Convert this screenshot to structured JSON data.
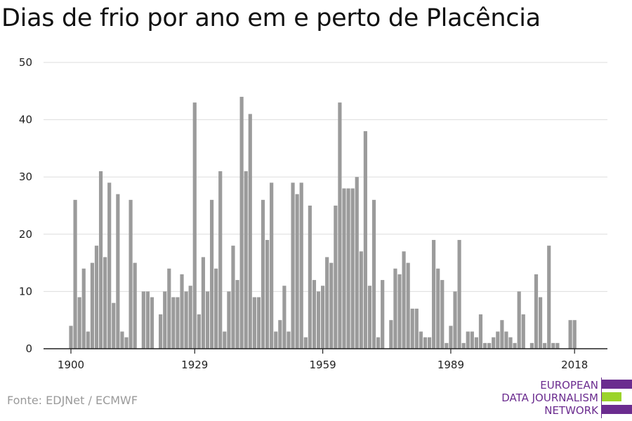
{
  "title": "Dias de frio por ano em e perto de Placência",
  "source": "Fonte: EDJNet / ECMWF",
  "logo": {
    "lines": [
      "EUROPEAN",
      "DATA JOURNALISM",
      "NETWORK"
    ],
    "colors": {
      "purple": "#6b2c8f",
      "green": "#9bd32b"
    }
  },
  "chart_data": {
    "type": "bar",
    "title": "Dias de frio por ano em e perto de Placência",
    "xlabel": "",
    "ylabel": "",
    "ylim": [
      0,
      50
    ],
    "yticks": [
      0,
      10,
      20,
      30,
      40,
      50
    ],
    "xticks": [
      1900,
      1929,
      1959,
      1989,
      2018
    ],
    "grid": true,
    "legend": "none",
    "bar_color": "#9b9b9b",
    "x": [
      1900,
      1901,
      1902,
      1903,
      1904,
      1905,
      1906,
      1907,
      1908,
      1909,
      1910,
      1911,
      1912,
      1913,
      1914,
      1915,
      1916,
      1917,
      1918,
      1919,
      1920,
      1921,
      1922,
      1923,
      1924,
      1925,
      1926,
      1927,
      1928,
      1929,
      1930,
      1931,
      1932,
      1933,
      1934,
      1935,
      1936,
      1937,
      1938,
      1939,
      1940,
      1941,
      1942,
      1943,
      1944,
      1945,
      1946,
      1947,
      1948,
      1949,
      1950,
      1951,
      1952,
      1953,
      1954,
      1955,
      1956,
      1957,
      1958,
      1959,
      1960,
      1961,
      1962,
      1963,
      1964,
      1965,
      1966,
      1967,
      1968,
      1969,
      1970,
      1971,
      1972,
      1973,
      1974,
      1975,
      1976,
      1977,
      1978,
      1979,
      1980,
      1981,
      1982,
      1983,
      1984,
      1985,
      1986,
      1987,
      1988,
      1989,
      1990,
      1991,
      1992,
      1993,
      1994,
      1995,
      1996,
      1997,
      1998,
      1999,
      2000,
      2001,
      2002,
      2003,
      2004,
      2005,
      2006,
      2007,
      2008,
      2009,
      2010,
      2011,
      2012,
      2013,
      2014,
      2015,
      2016,
      2017,
      2018
    ],
    "values": [
      4,
      26,
      9,
      14,
      3,
      15,
      18,
      31,
      16,
      29,
      8,
      27,
      3,
      2,
      26,
      15,
      0,
      10,
      10,
      9,
      0,
      6,
      10,
      14,
      9,
      9,
      13,
      10,
      11,
      43,
      6,
      16,
      10,
      26,
      14,
      31,
      3,
      10,
      18,
      12,
      44,
      31,
      41,
      9,
      9,
      26,
      19,
      29,
      3,
      5,
      11,
      3,
      29,
      27,
      29,
      2,
      25,
      12,
      10,
      11,
      16,
      15,
      25,
      43,
      28,
      28,
      28,
      30,
      17,
      38,
      11,
      26,
      2,
      12,
      0,
      5,
      14,
      13,
      17,
      15,
      7,
      7,
      3,
      2,
      2,
      19,
      14,
      12,
      1,
      4,
      10,
      19,
      1,
      3,
      3,
      2,
      6,
      1,
      1,
      2,
      3,
      5,
      3,
      2,
      1,
      10,
      6,
      0,
      1,
      13,
      9,
      1,
      18,
      1,
      1,
      0,
      0,
      5,
      5
    ]
  }
}
